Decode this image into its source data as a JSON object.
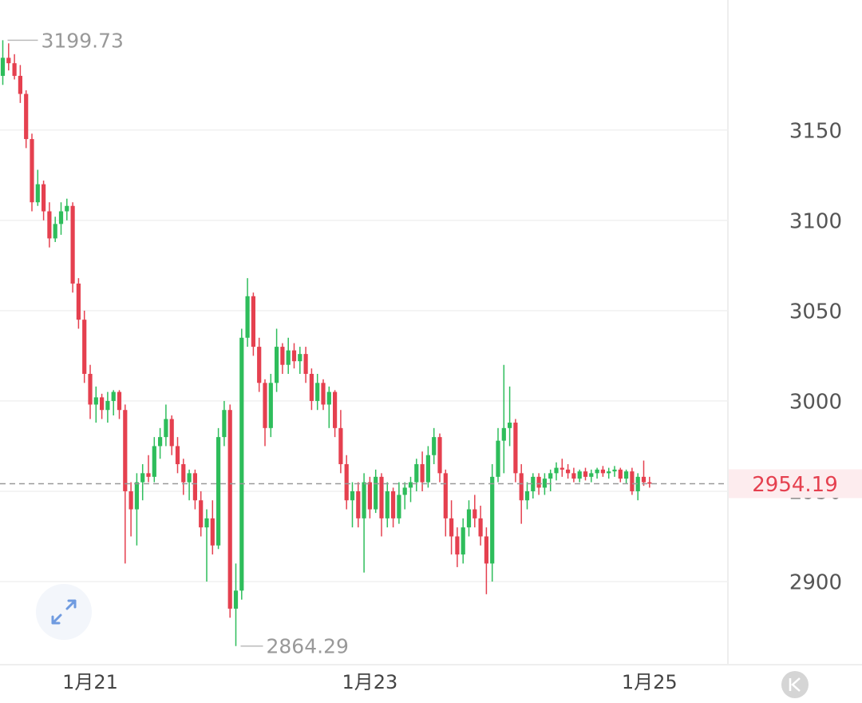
{
  "chart_data": {
    "type": "candlestick",
    "up_color": "#2ebd5b",
    "down_color": "#e5404f",
    "ylim": [
      2854,
      3222
    ],
    "yticks": [
      2900,
      2950,
      3000,
      3050,
      3100,
      3150
    ],
    "grid": true,
    "categories": [
      null,
      null,
      null,
      null,
      null,
      null,
      null,
      null,
      null,
      null,
      null,
      null,
      null,
      null,
      null,
      "1月21",
      null,
      null,
      null,
      null,
      null,
      null,
      null,
      null,
      null,
      null,
      null,
      null,
      null,
      null,
      null,
      null,
      null,
      null,
      null,
      null,
      null,
      null,
      null,
      null,
      null,
      null,
      null,
      null,
      null,
      null,
      null,
      null,
      null,
      null,
      null,
      null,
      null,
      null,
      null,
      null,
      null,
      null,
      null,
      null,
      null,
      null,
      null,
      "1月23",
      null,
      null,
      null,
      null,
      null,
      null,
      null,
      null,
      null,
      null,
      null,
      null,
      null,
      null,
      null,
      null,
      null,
      null,
      null,
      null,
      null,
      null,
      null,
      null,
      null,
      null,
      null,
      null,
      null,
      null,
      null,
      null,
      null,
      null,
      null,
      null,
      null,
      null,
      null,
      null,
      null,
      null,
      null,
      null,
      null,
      null,
      null,
      "1月25"
    ],
    "open": [
      3180,
      3190,
      3187,
      3180,
      3170,
      3145,
      3110,
      3120,
      3105,
      3090,
      3098,
      3105,
      3108,
      3065,
      3045,
      3015,
      2998,
      3002,
      2995,
      3000,
      3005,
      2995,
      2950,
      2940,
      2955,
      2960,
      2958,
      2975,
      2980,
      2990,
      2975,
      2965,
      2955,
      2960,
      2945,
      2930,
      2935,
      2920,
      2980,
      2995,
      2885,
      2895,
      3035,
      3058,
      3030,
      3010,
      2985,
      3010,
      3030,
      3020,
      3028,
      3022,
      3026,
      3015,
      3000,
      3010,
      2998,
      3005,
      2985,
      2965,
      2945,
      2950,
      2935,
      2955,
      2940,
      2958,
      2935,
      2950,
      2935,
      2948,
      2952,
      2955,
      2965,
      2955,
      2970,
      2980,
      2960,
      2935,
      2925,
      2915,
      2930,
      2940,
      2935,
      2925,
      2910,
      2958,
      2978,
      2985,
      2988,
      2960,
      2945,
      2950,
      2958,
      2952,
      2957,
      2960,
      2963,
      2962,
      2960,
      2957,
      2961,
      2958,
      2960,
      2962,
      2960,
      2961,
      2962,
      2957,
      2961,
      2950,
      2958,
      2955
    ],
    "high": [
      3199.73,
      3198,
      3192,
      3186,
      3172,
      3148,
      3128,
      3122,
      3110,
      3102,
      3110,
      3112,
      3110,
      3068,
      3050,
      3020,
      3008,
      3004,
      3005,
      3006,
      3006,
      2998,
      2955,
      2960,
      2965,
      2970,
      2980,
      2985,
      2998,
      2992,
      2980,
      2968,
      2962,
      2962,
      2950,
      2940,
      2945,
      2985,
      3000,
      2998,
      2910,
      3040,
      3068,
      3060,
      3035,
      3012,
      3015,
      3040,
      3032,
      3035,
      3032,
      3030,
      3030,
      3018,
      3015,
      3012,
      3008,
      3006,
      2995,
      2970,
      2955,
      2955,
      2960,
      2958,
      2962,
      2960,
      2955,
      2952,
      2955,
      2955,
      2958,
      2968,
      2972,
      2975,
      2985,
      2982,
      2962,
      2945,
      2930,
      2935,
      2945,
      2948,
      2942,
      2930,
      2965,
      2985,
      3020,
      3008,
      2990,
      2965,
      2955,
      2960,
      2960,
      2960,
      2962,
      2966,
      2968,
      2965,
      2963,
      2962,
      2963,
      2962,
      2963,
      2964,
      2963,
      2964,
      2963,
      2962,
      2963,
      2960,
      2967,
      2958
    ],
    "low": [
      3175,
      3183,
      3178,
      3165,
      3140,
      3105,
      3108,
      3100,
      3085,
      3088,
      3092,
      3100,
      3060,
      3040,
      3010,
      2990,
      2988,
      2990,
      2988,
      2992,
      2990,
      2910,
      2925,
      2920,
      2945,
      2955,
      2955,
      2968,
      2975,
      2970,
      2960,
      2948,
      2945,
      2940,
      2925,
      2900,
      2915,
      2918,
      2975,
      2880,
      2864.29,
      2890,
      3030,
      3025,
      3005,
      2975,
      2980,
      3005,
      3015,
      3015,
      3018,
      3015,
      3010,
      2995,
      2995,
      2995,
      2985,
      2980,
      2960,
      2940,
      2930,
      2930,
      2905,
      2935,
      2938,
      2925,
      2930,
      2930,
      2932,
      2940,
      2944,
      2950,
      2950,
      2952,
      2965,
      2955,
      2925,
      2915,
      2908,
      2910,
      2925,
      2930,
      2920,
      2893,
      2900,
      2955,
      2960,
      2975,
      2955,
      2932,
      2940,
      2946,
      2948,
      2948,
      2950,
      2956,
      2958,
      2957,
      2955,
      2955,
      2956,
      2955,
      2957,
      2958,
      2957,
      2958,
      2955,
      2954,
      2948,
      2945,
      2953,
      2952
    ],
    "close": [
      3190,
      3187,
      3180,
      3170,
      3145,
      3110,
      3120,
      3105,
      3090,
      3098,
      3105,
      3108,
      3065,
      3045,
      3015,
      2998,
      3002,
      2995,
      3000,
      3005,
      2995,
      2950,
      2940,
      2955,
      2960,
      2958,
      2975,
      2980,
      2990,
      2975,
      2965,
      2955,
      2960,
      2945,
      2930,
      2935,
      2920,
      2980,
      2995,
      2885,
      2895,
      3035,
      3058,
      3030,
      3010,
      2985,
      3010,
      3030,
      3020,
      3028,
      3022,
      3026,
      3015,
      3000,
      3010,
      2998,
      3005,
      2985,
      2965,
      2945,
      2950,
      2935,
      2955,
      2940,
      2958,
      2935,
      2950,
      2935,
      2948,
      2952,
      2955,
      2965,
      2955,
      2970,
      2980,
      2960,
      2935,
      2925,
      2915,
      2930,
      2940,
      2935,
      2925,
      2910,
      2958,
      2978,
      2985,
      2988,
      2960,
      2945,
      2950,
      2958,
      2952,
      2957,
      2960,
      2963,
      2962,
      2960,
      2957,
      2961,
      2958,
      2960,
      2962,
      2960,
      2961,
      2962,
      2957,
      2961,
      2950,
      2958,
      2955,
      2954.19
    ]
  }
}
